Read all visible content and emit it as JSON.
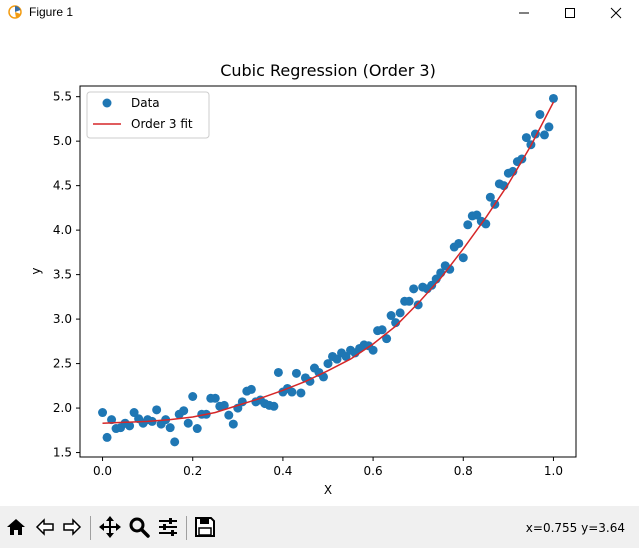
{
  "window": {
    "title": "Figure 1",
    "minimize_label": "minimize",
    "maximize_label": "maximize",
    "close_label": "close"
  },
  "toolbar": {
    "buttons": [
      {
        "name": "home-button",
        "icon": "home-icon"
      },
      {
        "name": "back-button",
        "icon": "back-arrow-icon"
      },
      {
        "name": "forward-button",
        "icon": "forward-arrow-icon"
      },
      {
        "name": "pan-button",
        "icon": "move-icon"
      },
      {
        "name": "zoom-button",
        "icon": "magnifier-icon"
      },
      {
        "name": "configure-subplots-button",
        "icon": "sliders-icon"
      },
      {
        "name": "save-button",
        "icon": "floppy-disk-icon"
      }
    ],
    "coords": "x=0.755 y=3.64"
  },
  "chart_data": {
    "type": "scatter",
    "title": "Cubic Regression (Order 3)",
    "xlabel": "X",
    "ylabel": "y",
    "xlim": [
      -0.05,
      1.05
    ],
    "ylim": [
      1.45,
      5.62
    ],
    "xticks": [
      "0.0",
      "0.2",
      "0.4",
      "0.6",
      "0.8",
      "1.0"
    ],
    "yticks": [
      "1.5",
      "2.0",
      "2.5",
      "3.0",
      "3.5",
      "4.0",
      "4.5",
      "5.0",
      "5.5"
    ],
    "legend": {
      "placement": "upper-left",
      "entries": [
        "Data",
        "Order 3 fit"
      ]
    },
    "colors": {
      "data": "#1f77b4",
      "fit": "#d62728"
    },
    "series": [
      {
        "name": "Data",
        "kind": "scatter",
        "x": [
          0.0,
          0.01,
          0.02,
          0.03,
          0.04,
          0.05,
          0.06,
          0.07,
          0.08,
          0.09,
          0.1,
          0.11,
          0.12,
          0.13,
          0.14,
          0.15,
          0.16,
          0.17,
          0.18,
          0.19,
          0.2,
          0.21,
          0.22,
          0.23,
          0.24,
          0.25,
          0.26,
          0.27,
          0.28,
          0.29,
          0.3,
          0.31,
          0.32,
          0.33,
          0.34,
          0.35,
          0.36,
          0.37,
          0.38,
          0.39,
          0.4,
          0.41,
          0.42,
          0.43,
          0.44,
          0.45,
          0.46,
          0.47,
          0.48,
          0.49,
          0.5,
          0.51,
          0.52,
          0.53,
          0.54,
          0.55,
          0.56,
          0.57,
          0.58,
          0.59,
          0.6,
          0.61,
          0.62,
          0.63,
          0.64,
          0.65,
          0.66,
          0.67,
          0.68,
          0.69,
          0.7,
          0.71,
          0.72,
          0.73,
          0.74,
          0.75,
          0.76,
          0.77,
          0.78,
          0.79,
          0.8,
          0.81,
          0.82,
          0.83,
          0.84,
          0.85,
          0.86,
          0.87,
          0.88,
          0.89,
          0.9,
          0.91,
          0.92,
          0.93,
          0.94,
          0.95,
          0.96,
          0.97,
          0.98,
          0.99,
          1.0
        ],
        "y": [
          1.95,
          1.67,
          1.87,
          1.77,
          1.78,
          1.83,
          1.8,
          1.95,
          1.88,
          1.83,
          1.87,
          1.85,
          1.98,
          1.82,
          1.87,
          1.78,
          1.62,
          1.93,
          1.97,
          1.83,
          2.13,
          1.77,
          1.93,
          1.93,
          2.11,
          2.11,
          2.02,
          2.03,
          1.92,
          1.82,
          2.0,
          2.07,
          2.19,
          2.21,
          2.07,
          2.09,
          2.05,
          2.03,
          2.02,
          2.4,
          2.18,
          2.22,
          2.18,
          2.39,
          2.17,
          2.34,
          2.3,
          2.45,
          2.4,
          2.35,
          2.5,
          2.58,
          2.55,
          2.62,
          2.58,
          2.65,
          2.62,
          2.67,
          2.71,
          2.7,
          2.65,
          2.87,
          2.88,
          2.78,
          3.04,
          2.96,
          3.07,
          3.2,
          3.2,
          3.34,
          3.16,
          3.36,
          3.34,
          3.38,
          3.45,
          3.52,
          3.6,
          3.56,
          3.81,
          3.85,
          3.69,
          4.06,
          4.16,
          4.17,
          4.1,
          4.07,
          4.37,
          4.29,
          4.52,
          4.5,
          4.64,
          4.66,
          4.77,
          4.8,
          5.04,
          4.96,
          5.08,
          5.3,
          5.07,
          5.16,
          5.48
        ]
      },
      {
        "name": "Order 3 fit",
        "kind": "line",
        "x": [
          0.0,
          0.05,
          0.1,
          0.15,
          0.2,
          0.25,
          0.3,
          0.35,
          0.4,
          0.45,
          0.5,
          0.55,
          0.6,
          0.65,
          0.7,
          0.75,
          0.8,
          0.85,
          0.9,
          0.95,
          1.0
        ],
        "y": [
          1.83,
          1.84,
          1.85,
          1.87,
          1.9,
          1.95,
          2.03,
          2.11,
          2.2,
          2.3,
          2.42,
          2.55,
          2.72,
          2.92,
          3.18,
          3.46,
          3.79,
          4.14,
          4.52,
          4.95,
          5.44
        ]
      }
    ]
  }
}
